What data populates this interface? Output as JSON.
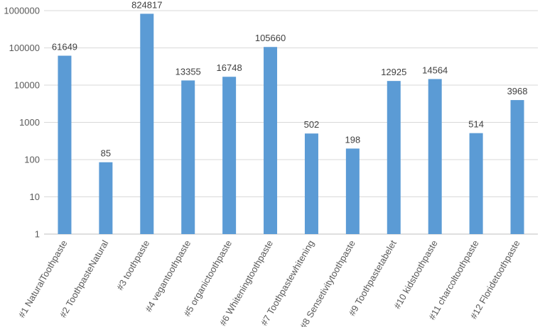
{
  "chart_data": {
    "type": "bar",
    "title": "",
    "xlabel": "",
    "ylabel": "",
    "y_scale": "log",
    "ylim": [
      1,
      1000000
    ],
    "y_ticks": [
      1,
      10,
      100,
      1000,
      10000,
      100000,
      1000000
    ],
    "y_tick_labels": [
      "1",
      "10",
      "100",
      "1000",
      "10000",
      "100000",
      "1000000"
    ],
    "grid": true,
    "legend": "none",
    "bar_color": "#5b9bd5",
    "categories": [
      "#1 NaturalToothpaste",
      "#2 ToothpasteNatural",
      "#3 toothpaste",
      "#4 vegantoothpaste",
      "#5 organictoothpaste",
      "#6 Whiteningtoothpaste",
      "#7 Toothpastewhitening",
      "#8 Sensetivitytoothpaste",
      "#9 Toothpastetabelet",
      "#10 kidstoothpaste",
      "#11 charcoltoothpaste",
      "#12 Floridetoothpaste"
    ],
    "values": [
      61649,
      85,
      824817,
      13355,
      16748,
      105660,
      502,
      198,
      12925,
      14564,
      514,
      3968
    ],
    "data_labels": [
      "61649",
      "85",
      "824817",
      "13355",
      "16748",
      "105660",
      "502",
      "198",
      "12925",
      "14564",
      "514",
      "3968"
    ]
  }
}
